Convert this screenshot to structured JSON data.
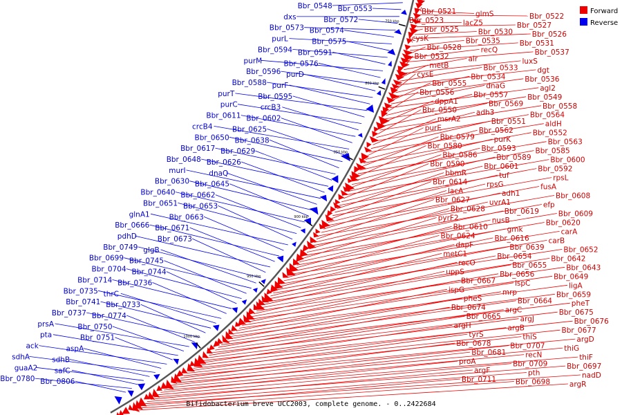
{
  "caption": "Bifidobacterium breve UCC2003, complete genome. - 0..2422684",
  "legend": [
    {
      "label": "Forward",
      "color": "#ee0000"
    },
    {
      "label": "Reverse",
      "color": "#0000ee"
    }
  ],
  "scale_labels": [
    "750 kbp",
    "800 kbp",
    "850 kbp",
    "900 kbp",
    "950 kbp",
    "1000 kbp"
  ],
  "forward_genes": [
    "Bbr_0521",
    "glmS",
    "Bbr_0522",
    "Bbr_0523",
    "lacZ5",
    "Bbr_0527",
    "Bbr_0525",
    "Bbr_0530",
    "Bbr_0526",
    "cysK",
    "Bbr_0535",
    "Bbr_0531",
    "Bbr_0528",
    "recQ",
    "Bbr_0537",
    "Bbr_0532",
    "alr",
    "luxS",
    "metB",
    "Bbr_0533",
    "dgt",
    "cysE",
    "Bbr_0534",
    "Bbr_0536",
    "Bbr_0555",
    "dnaG",
    "agl2",
    "Bbr_0556",
    "Bbr_0557",
    "Bbr_0549",
    "dppA1",
    "Bbr_0569",
    "Bbr_0558",
    "Bbr_0550",
    "adh3",
    "Bbr_0564",
    "msrA2",
    "Bbr_0551",
    "aldH",
    "purE",
    "Bbr_0562",
    "Bbr_0552",
    "Bbr_0579",
    "purK",
    "Bbr_0563",
    "Bbr_0580",
    "Bbr_0593",
    "Bbr_0585",
    "Bbr_0586",
    "Bbr_0589",
    "Bbr_0600",
    "Bbr_0590",
    "Bbr_0601",
    "Bbr_0592",
    "bbmR",
    "tuf",
    "rpsL",
    "Bbr_0614",
    "rpsG",
    "fusA",
    "lacA",
    "adh1",
    "Bbr_0608",
    "Bbr_0627",
    "uvrA1",
    "efp",
    "Bbr_0628",
    "Bbr_0619",
    "Bbr_0609",
    "pyrF2",
    "nusB",
    "Bbr_0620",
    "Bbr_0610",
    "gmk",
    "carA",
    "Bbr_0624",
    "Bbr_0616",
    "carB",
    "dapF",
    "Bbr_0639",
    "Bbr_0652",
    "metC1",
    "Bbr_0654",
    "Bbr_0642",
    "recO",
    "Bbr_0655",
    "Bbr_0643",
    "uppS",
    "Bbr_0656",
    "Bbr_0649",
    "Bbr_0667",
    "ispC",
    "ligA",
    "ispG",
    "mrp",
    "Bbr_0659",
    "pheS",
    "Bbr_0664",
    "pheT",
    "Bbr_0674",
    "argC",
    "Bbr_0675",
    "Bbr_0665",
    "argJ",
    "Bbr_0676",
    "argH",
    "argB",
    "Bbr_0677",
    "tyrS",
    "thiS",
    "argD",
    "Bbr_0678",
    "Bbr_0707",
    "thiG",
    "Bbr_0681",
    "recN",
    "thiF",
    "proA",
    "Bbr_0709",
    "Bbr_0697",
    "argF",
    "pth",
    "nadD",
    "Bbr_0711",
    "Bbr_0698",
    "argR"
  ],
  "reverse_genes": [
    "Bbr_0548",
    "Bbr_0553",
    "dxs",
    "Bbr_0572",
    "Bbr_0573",
    "Bbr_0574",
    "purL",
    "Bbr_0575",
    "Bbr_0594",
    "Bbr_0591",
    "purM",
    "Bbr_0576",
    "Bbr_0596",
    "purD",
    "Bbr_0588",
    "purF",
    "purT",
    "Bbr_0595",
    "purC",
    "crcB3",
    "Bbr_0611",
    "Bbr_0602",
    "crcB4",
    "Bbr_0625",
    "Bbr_0650",
    "Bbr_0638",
    "Bbr_0617",
    "Bbr_0629",
    "Bbr_0648",
    "Bbr_0626",
    "murI",
    "dnaQ",
    "Bbr_0630",
    "Bbr_0645",
    "Bbr_0640",
    "Bbr_0662",
    "Bbr_0651",
    "Bbr_0653",
    "glnA1",
    "Bbr_0663",
    "Bbr_0666",
    "Bbr_0671",
    "pdhD",
    "Bbr_0673",
    "Bbr_0749",
    "glgB",
    "Bbr_0699",
    "Bbr_0745",
    "Bbr_0704",
    "Bbr_0744",
    "Bbr_0714",
    "Bbr_0736",
    "Bbr_0735",
    "thrC",
    "Bbr_0741",
    "Bbr_0733",
    "Bbr_0737",
    "Bbr_0774",
    "prsA",
    "Bbr_0750",
    "pta",
    "Bbr_0751",
    "ack",
    "aspA",
    "sdhA",
    "sdhB",
    "guaA2",
    "safC",
    "Bbr_0780",
    "Bbr_0806"
  ]
}
